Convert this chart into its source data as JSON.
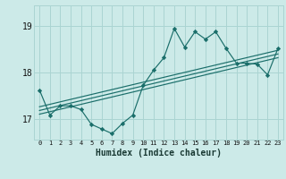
{
  "xlabel": "Humidex (Indice chaleur)",
  "background_color": "#cceae8",
  "grid_color": "#aad4d2",
  "line_color": "#1a6e6a",
  "x_labels": [
    "0",
    "1",
    "2",
    "3",
    "4",
    "5",
    "6",
    "7",
    "8",
    "9",
    "10",
    "11",
    "12",
    "13",
    "14",
    "15",
    "16",
    "17",
    "18",
    "19",
    "20",
    "21",
    "22",
    "23"
  ],
  "yticks": [
    17,
    18,
    19
  ],
  "ylim": [
    16.55,
    19.45
  ],
  "xlim": [
    -0.5,
    23.5
  ],
  "main_data": [
    17.62,
    17.08,
    17.28,
    17.28,
    17.2,
    16.88,
    16.78,
    16.68,
    16.9,
    17.08,
    17.72,
    18.05,
    18.32,
    18.95,
    18.55,
    18.88,
    18.72,
    18.88,
    18.52,
    18.2,
    18.2,
    18.18,
    17.95,
    18.52
  ],
  "regression_lines": [
    {
      "start_x": 0,
      "start_y": 17.1,
      "end_x": 23,
      "end_y": 18.32
    },
    {
      "start_x": 0,
      "start_y": 17.18,
      "end_x": 23,
      "end_y": 18.4
    },
    {
      "start_x": 0,
      "start_y": 17.26,
      "end_x": 23,
      "end_y": 18.48
    }
  ]
}
